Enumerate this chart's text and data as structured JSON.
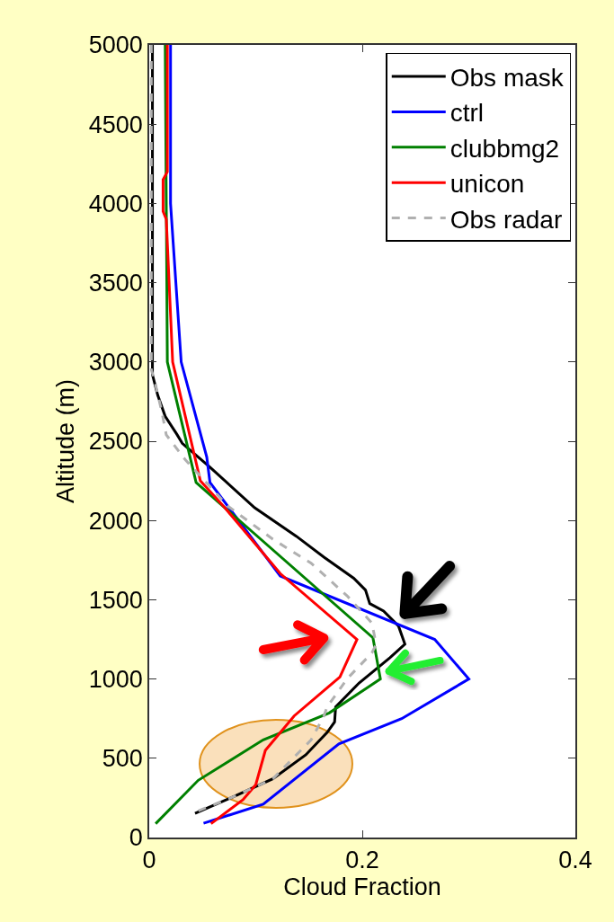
{
  "chart_data": {
    "type": "line",
    "xlabel": "Cloud Fraction",
    "ylabel": "Altitude (m)",
    "xlim": [
      0,
      0.4
    ],
    "xticks": [
      0,
      0.2,
      0.4
    ],
    "ylim": [
      0,
      5000
    ],
    "yticks": [
      0,
      500,
      1000,
      1500,
      2000,
      2500,
      3000,
      3500,
      4000,
      4500,
      5000
    ],
    "grid": false,
    "legend": "top right",
    "marker": "none",
    "line_style": "solid",
    "series": [
      {
        "name": "Obs mask",
        "color": "#000000",
        "x": [
          0.003,
          0.003,
          0.008,
          0.015,
          0.026,
          0.031,
          0.057,
          0.099,
          0.138,
          0.164,
          0.192,
          0.203,
          0.207,
          0.22,
          0.234,
          0.24,
          0.226,
          0.197,
          0.175,
          0.174,
          0.167,
          0.147,
          0.116,
          0.079,
          0.043
        ],
        "values": [
          5000,
          2920,
          2790,
          2657,
          2543,
          2487,
          2336,
          2080,
          1901,
          1769,
          1636,
          1561,
          1476,
          1429,
          1334,
          1220,
          1135,
          975,
          824,
          729,
          663,
          522,
          370,
          257,
          153
        ]
      },
      {
        "name": "ctrl",
        "color": "#0000ff",
        "x": [
          0.02,
          0.02,
          0.03,
          0.054,
          0.057,
          0.123,
          0.268,
          0.3,
          0.237,
          0.178,
          0.107,
          0.051
        ],
        "values": [
          5000,
          4000,
          3000,
          2400,
          2240,
          1650,
          1250,
          1000,
          750,
          590,
          210,
          90
        ]
      },
      {
        "name": "clubbmg2",
        "color": "#008000",
        "x": [
          0.015,
          0.017,
          0.044,
          0.21,
          0.217,
          0.169,
          0.107,
          0.046,
          0.006
        ],
        "values": [
          5000,
          3000,
          2240,
          1260,
          1000,
          786,
          616,
          361,
          87
        ]
      },
      {
        "name": "unicon",
        "color": "#ff0000",
        "x": [
          0.017,
          0.017,
          0.013,
          0.013,
          0.016,
          0.022,
          0.048,
          0.071,
          0.123,
          0.195,
          0.179,
          0.136,
          0.109,
          0.1,
          0.088,
          0.058
        ],
        "values": [
          5000,
          4200,
          4150,
          3950,
          3900,
          3000,
          2250,
          2080,
          1665,
          1249,
          1013,
          767,
          550,
          333,
          238,
          87
        ]
      },
      {
        "name": "Obs radar",
        "color": "#b0b0b0",
        "line_style": "dashed",
        "x": [
          0.002,
          0.002,
          0.005,
          0.012,
          0.016,
          0.034,
          0.074,
          0.116,
          0.152,
          0.186,
          0.209,
          0.213,
          0.209,
          0.186,
          0.167,
          0.164,
          0.152,
          0.116,
          0.079,
          0.043
        ],
        "values": [
          5000,
          2950,
          2883,
          2680,
          2540,
          2382,
          2090,
          1882,
          1731,
          1523,
          1353,
          1220,
          1164,
          1003,
          824,
          767,
          616,
          370,
          257,
          160
        ]
      }
    ]
  }
}
